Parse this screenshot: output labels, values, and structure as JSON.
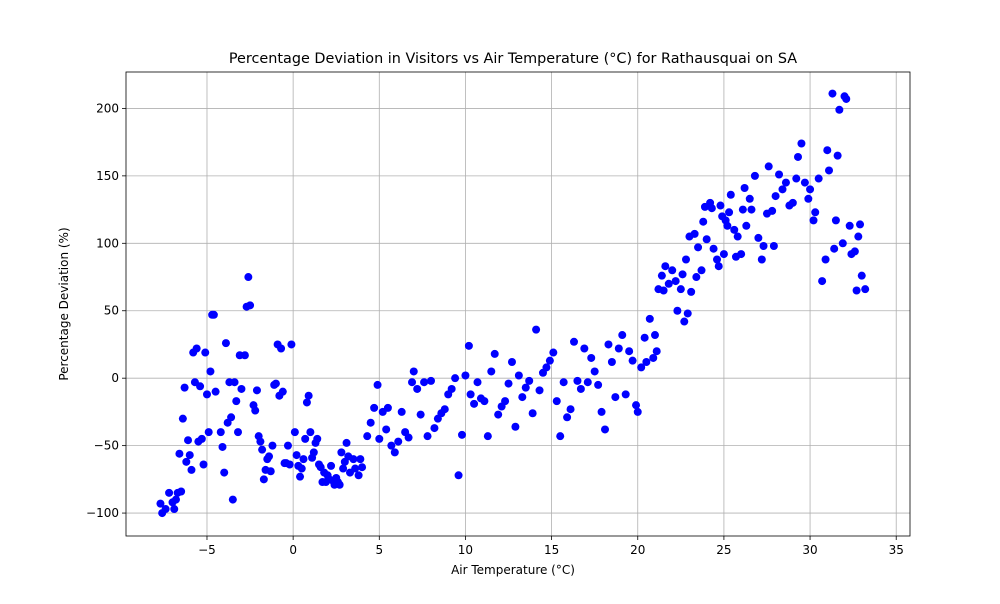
{
  "chart_data": {
    "type": "scatter",
    "title": "Percentage Deviation in Visitors vs Air Temperature (°C) for Rathausquai on SA",
    "x_label": "Air Temperature (°C)",
    "y_label": "Percentage Deviation (%)",
    "color": "#0000ff",
    "grid": true,
    "xlim": [
      -9.7,
      35.8
    ],
    "ylim": [
      -117,
      227
    ],
    "xticks": [
      {
        "value": -5,
        "label": "−5"
      },
      0,
      5,
      10,
      15,
      20,
      25,
      30,
      35
    ],
    "yticks": [
      {
        "value": -100,
        "label": "−100"
      },
      {
        "value": -50,
        "label": "−50"
      },
      0,
      50,
      100,
      150,
      200
    ],
    "x": [
      -7.7,
      -7.6,
      -7.4,
      -7.2,
      -7.0,
      -6.9,
      -6.8,
      -6.7,
      -6.6,
      -6.5,
      -6.4,
      -6.3,
      -6.2,
      -6.1,
      -6.0,
      -5.9,
      -5.8,
      -5.7,
      -5.6,
      -5.5,
      -5.4,
      -5.3,
      -5.2,
      -5.1,
      -5.0,
      -4.9,
      -4.8,
      -4.7,
      -4.6,
      -4.5,
      -4.2,
      -4.1,
      -4.0,
      -3.9,
      -3.8,
      -3.7,
      -3.6,
      -3.5,
      -3.4,
      -3.3,
      -3.2,
      -3.1,
      -3.0,
      -2.8,
      -2.7,
      -2.6,
      -2.5,
      -2.3,
      -2.2,
      -2.1,
      -2.0,
      -1.9,
      -1.8,
      -1.7,
      -1.6,
      -1.5,
      -1.4,
      -1.3,
      -1.2,
      -1.1,
      -1.0,
      -0.9,
      -0.8,
      -0.7,
      -0.6,
      -0.5,
      -0.4,
      -0.3,
      -0.2,
      -0.1,
      0.1,
      0.2,
      0.3,
      0.4,
      0.5,
      0.6,
      0.7,
      0.8,
      0.9,
      1.0,
      1.1,
      1.2,
      1.3,
      1.4,
      1.5,
      1.6,
      1.7,
      1.8,
      1.9,
      2.0,
      2.1,
      2.2,
      2.3,
      2.4,
      2.5,
      2.6,
      2.7,
      2.8,
      2.9,
      3.0,
      3.1,
      3.2,
      3.3,
      3.5,
      3.6,
      3.8,
      3.9,
      4.0,
      4.3,
      4.5,
      4.7,
      4.9,
      5.0,
      5.2,
      5.4,
      5.5,
      5.7,
      5.9,
      6.1,
      6.3,
      6.5,
      6.7,
      6.9,
      7.0,
      7.2,
      7.4,
      7.6,
      7.8,
      8.0,
      8.2,
      8.4,
      8.6,
      8.8,
      9.0,
      9.2,
      9.4,
      9.6,
      9.8,
      10.0,
      10.2,
      10.3,
      10.5,
      10.7,
      10.9,
      11.1,
      11.3,
      11.5,
      11.7,
      11.9,
      12.1,
      12.3,
      12.5,
      12.7,
      12.9,
      13.1,
      13.3,
      13.5,
      13.7,
      13.9,
      14.1,
      14.3,
      14.5,
      14.7,
      14.9,
      15.1,
      15.3,
      15.5,
      15.7,
      15.9,
      16.1,
      16.3,
      16.5,
      16.7,
      16.9,
      17.1,
      17.3,
      17.5,
      17.7,
      17.9,
      18.1,
      18.3,
      18.5,
      18.7,
      18.9,
      19.1,
      19.3,
      19.5,
      19.7,
      19.9,
      20.0,
      20.2,
      20.4,
      20.5,
      20.7,
      20.9,
      21.0,
      21.1,
      21.2,
      21.4,
      21.5,
      21.6,
      21.8,
      22.0,
      22.2,
      22.3,
      22.5,
      22.6,
      22.7,
      22.8,
      22.9,
      23.0,
      23.1,
      23.3,
      23.4,
      23.5,
      23.7,
      23.8,
      23.9,
      24.0,
      24.2,
      24.3,
      24.4,
      24.6,
      24.7,
      24.8,
      24.9,
      25.0,
      25.1,
      25.2,
      25.3,
      25.4,
      25.6,
      25.7,
      25.8,
      26.0,
      26.1,
      26.2,
      26.3,
      26.5,
      26.6,
      26.8,
      27.0,
      27.2,
      27.3,
      27.5,
      27.6,
      27.8,
      27.9,
      28.0,
      28.2,
      28.4,
      28.6,
      28.8,
      29.0,
      29.2,
      29.3,
      29.5,
      29.7,
      29.9,
      30.0,
      30.2,
      30.3,
      30.5,
      30.7,
      30.9,
      31.0,
      31.1,
      31.3,
      31.4,
      31.5,
      31.6,
      31.7,
      31.9,
      32.0,
      32.1,
      32.3,
      32.4,
      32.6,
      32.7,
      32.8,
      32.9,
      33.0,
      33.2
    ],
    "values": [
      -93,
      -100,
      -97,
      -85,
      -92,
      -97,
      -90,
      -85,
      -56,
      -84,
      -30,
      -7,
      -62,
      -46,
      -57,
      -68,
      19,
      -3,
      22,
      -47,
      -6,
      -45,
      -64,
      19,
      -12,
      -40,
      5,
      47,
      47,
      -10,
      -40,
      -51,
      -70,
      26,
      -33,
      -3,
      -29,
      -90,
      -3,
      -17,
      -40,
      17,
      -8,
      17,
      53,
      75,
      54,
      -20,
      -24,
      -9,
      -43,
      -47,
      -53,
      -75,
      -68,
      -60,
      -58,
      -69,
      -50,
      -5,
      -4,
      25,
      -13,
      22,
      -10,
      -63,
      -63,
      -50,
      -64,
      25,
      -40,
      -57,
      -65,
      -73,
      -67,
      -60,
      -45,
      -18,
      -13,
      -40,
      -59,
      -55,
      -48,
      -45,
      -64,
      -66,
      -77,
      -70,
      -77,
      -72,
      -75,
      -65,
      -76,
      -79,
      -74,
      -77,
      -79,
      -55,
      -67,
      -62,
      -48,
      -58,
      -70,
      -60,
      -67,
      -72,
      -60,
      -66,
      -43,
      -33,
      -22,
      -5,
      -45,
      -25,
      -38,
      -22,
      -50,
      -55,
      -47,
      -25,
      -40,
      -44,
      -3,
      5,
      -8,
      -27,
      -3,
      -43,
      -2,
      -37,
      -30,
      -26,
      -23,
      -12,
      -8,
      0,
      -72,
      -42,
      2,
      24,
      -12,
      -19,
      -3,
      -15,
      -17,
      -43,
      5,
      18,
      -27,
      -21,
      -17,
      -4,
      12,
      -36,
      2,
      -14,
      -7,
      -2,
      -26,
      36,
      -9,
      4,
      8,
      13,
      19,
      -17,
      -43,
      -3,
      -29,
      -23,
      27,
      -2,
      -8,
      22,
      -3,
      15,
      5,
      -5,
      -25,
      -38,
      25,
      12,
      -14,
      22,
      32,
      -12,
      20,
      13,
      -20,
      -25,
      8,
      30,
      12,
      44,
      15,
      32,
      20,
      66,
      76,
      65,
      83,
      70,
      80,
      72,
      50,
      66,
      77,
      42,
      88,
      48,
      105,
      64,
      107,
      75,
      97,
      80,
      116,
      127,
      103,
      130,
      126,
      96,
      88,
      83,
      128,
      120,
      92,
      117,
      113,
      123,
      136,
      110,
      90,
      105,
      92,
      125,
      141,
      113,
      133,
      125,
      150,
      104,
      88,
      98,
      122,
      157,
      124,
      98,
      135,
      151,
      140,
      145,
      128,
      130,
      148,
      164,
      174,
      145,
      133,
      140,
      117,
      123,
      148,
      72,
      88,
      169,
      154,
      211,
      96,
      117,
      165,
      199,
      100,
      209,
      207,
      113,
      92,
      94,
      65,
      105,
      114,
      76,
      66
    ]
  }
}
